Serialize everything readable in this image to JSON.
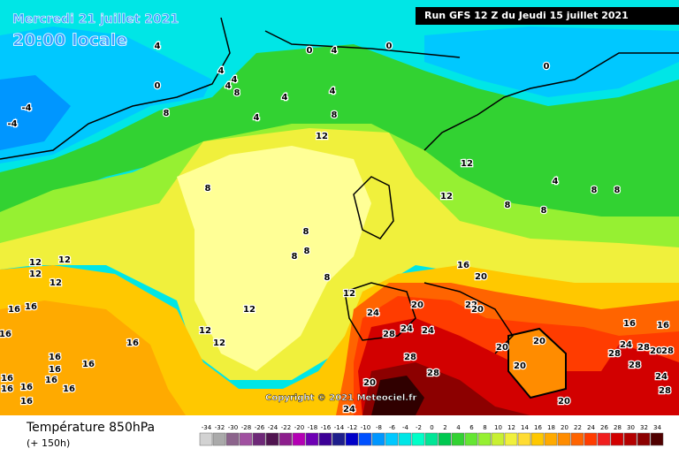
{
  "header": {
    "date": "Mercredi 21 juillet 2021",
    "time": "20:00 locale",
    "run": "Run GFS 12 Z du Jeudi 15 juillet 2021"
  },
  "copyright": "Copyright © 2021 Meteociel.fr",
  "legend": {
    "title": "Température 850hPa",
    "lead": "(+ 150h)",
    "ticks": [
      -34,
      -32,
      -30,
      -28,
      -26,
      -24,
      -22,
      -20,
      -18,
      -16,
      -14,
      -12,
      -10,
      -8,
      -6,
      -4,
      -2,
      0,
      2,
      4,
      6,
      8,
      10,
      12,
      14,
      16,
      18,
      20,
      22,
      24,
      26,
      28,
      30,
      32,
      34
    ],
    "colors": [
      "#d2d2d2",
      "#aaaaaa",
      "#8c648c",
      "#a050a0",
      "#6e2878",
      "#501450",
      "#8c1e8c",
      "#b400b4",
      "#6e00b4",
      "#3c0096",
      "#1e1e8c",
      "#0000c8",
      "#0050ff",
      "#0096ff",
      "#00c8ff",
      "#00e6e6",
      "#00ffc8",
      "#00e696",
      "#00c850",
      "#32d232",
      "#64e632",
      "#96f032",
      "#c8f032",
      "#f0f03c",
      "#ffdc32",
      "#ffc800",
      "#ffaa00",
      "#ff8c00",
      "#ff6400",
      "#ff3c00",
      "#f01e1e",
      "#d20000",
      "#b40000",
      "#8c0000",
      "#500000"
    ]
  },
  "contour_labels": [
    4,
    0,
    4,
    0,
    0,
    4,
    4,
    4,
    0,
    8,
    4,
    4,
    8,
    4,
    8,
    -4,
    -4,
    12,
    12,
    8,
    12,
    4,
    8,
    8,
    8,
    8,
    8,
    8,
    8,
    8,
    12,
    16,
    20,
    12,
    12,
    12,
    12,
    16,
    16,
    12,
    12,
    12,
    16,
    16,
    24,
    20,
    22,
    20,
    28,
    24,
    24,
    28,
    20,
    20,
    20,
    28,
    20,
    24,
    16,
    16,
    24,
    28,
    20,
    28,
    28,
    28,
    24,
    28,
    20,
    16,
    16,
    16,
    16,
    16,
    16,
    16,
    16,
    16
  ]
}
